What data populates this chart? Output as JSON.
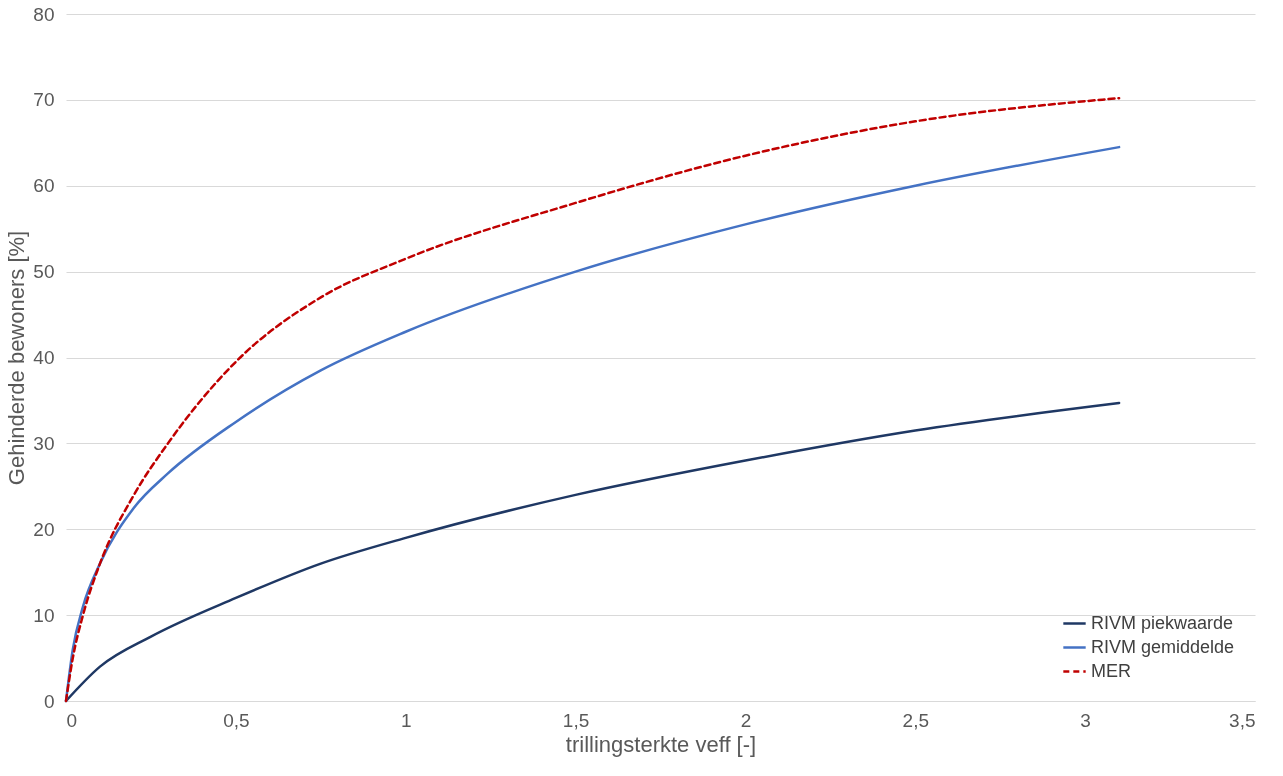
{
  "chart_data": {
    "type": "line",
    "xlabel": "trillingsterkte veff [-]",
    "ylabel": "Gehinderde bewoners [%]",
    "xlim": [
      0,
      3.5
    ],
    "xticks": [
      0,
      {
        "value": 0.5,
        "label": "0,5"
      },
      1,
      {
        "value": 1.5,
        "label": "1,5"
      },
      2,
      {
        "value": 2.5,
        "label": "2,5"
      },
      3,
      {
        "value": 3.5,
        "label": "3,5"
      }
    ],
    "ylim": [
      0,
      80
    ],
    "yticks": [
      0,
      10,
      20,
      30,
      40,
      50,
      60,
      70,
      80
    ],
    "grid": "y",
    "legend": "bottom right",
    "series": [
      {
        "name": "RIVM piekwaarde",
        "color": "#1f3864",
        "line_style": "solid",
        "x": [
          0,
          0.1,
          0.25,
          0.5,
          0.75,
          1,
          1.5,
          2,
          2.5,
          3.1
        ],
        "values": [
          0,
          4,
          7.5,
          12,
          16,
          19,
          24,
          28,
          31.5,
          34.7
        ]
      },
      {
        "name": "RIVM gemiddelde",
        "color": "#4472c4",
        "line_style": "solid",
        "x": [
          0,
          0.02,
          0.05,
          0.1,
          0.2,
          0.3,
          0.5,
          0.75,
          1,
          1.5,
          2,
          2.5,
          3.1
        ],
        "values": [
          0,
          6,
          11,
          16,
          22.5,
          26.5,
          32.5,
          38.5,
          43,
          50,
          55.5,
          60,
          64.5
        ]
      },
      {
        "name": "MER",
        "color": "#c00000",
        "line_style": "dashed",
        "x": [
          0,
          0.02,
          0.05,
          0.1,
          0.2,
          0.3,
          0.5,
          0.75,
          1,
          1.5,
          2,
          2.5,
          3.1
        ],
        "values": [
          0,
          5,
          10,
          16,
          24,
          30,
          39.5,
          47,
          51.5,
          58,
          63.5,
          67.5,
          70.2
        ]
      }
    ]
  }
}
